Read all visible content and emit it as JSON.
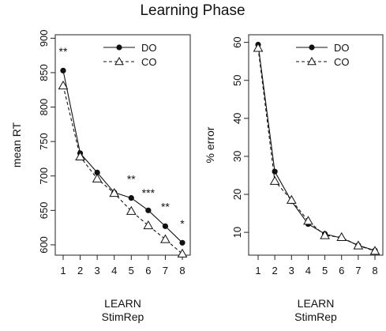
{
  "figure": {
    "title": "Learning Phase"
  },
  "chart_data": [
    {
      "type": "line",
      "xlabel": "LEARN",
      "xlabel2": "StimRep",
      "ylabel": "mean RT",
      "x": [
        1,
        2,
        3,
        4,
        5,
        6,
        7,
        8
      ],
      "xlim": [
        1,
        8
      ],
      "ylim": [
        585,
        905
      ],
      "yticks": [
        600,
        650,
        700,
        750,
        800,
        850,
        900
      ],
      "series": [
        {
          "name": "DO",
          "marker": "filled-circle",
          "line": "solid",
          "values": [
            853,
            733,
            705,
            676,
            668,
            650,
            627,
            603
          ]
        },
        {
          "name": "CO",
          "marker": "open-triangle",
          "line": "dashed",
          "values": [
            831,
            728,
            696,
            675,
            649,
            628,
            608,
            587
          ]
        }
      ],
      "annotations": [
        {
          "x": 1,
          "text": "**",
          "y_ref": 875
        },
        {
          "x": 5,
          "text": "**",
          "y_ref": 690
        },
        {
          "x": 6,
          "text": "***",
          "y_ref": 670
        },
        {
          "x": 7,
          "text": "**",
          "y_ref": 650
        },
        {
          "x": 8,
          "text": "*",
          "y_ref": 625
        }
      ],
      "legend": "top-right",
      "grid": false
    },
    {
      "type": "line",
      "xlabel": "LEARN",
      "xlabel2": "StimRep",
      "ylabel": "% error",
      "x": [
        1,
        2,
        3,
        4,
        5,
        6,
        7,
        8
      ],
      "xlim": [
        1,
        8
      ],
      "ylim": [
        4,
        62
      ],
      "yticks": [
        10,
        20,
        30,
        40,
        50,
        60
      ],
      "series": [
        {
          "name": "DO",
          "marker": "filled-circle",
          "line": "solid",
          "values": [
            59.4,
            26.0,
            18.2,
            12.2,
            9.6,
            8.5,
            6.6,
            5.2
          ]
        },
        {
          "name": "CO",
          "marker": "open-triangle",
          "line": "dashed",
          "values": [
            58.5,
            23.5,
            18.5,
            13.0,
            9.2,
            8.7,
            6.5,
            5.1
          ]
        }
      ],
      "annotations": [],
      "legend": "top-right",
      "grid": false
    }
  ]
}
